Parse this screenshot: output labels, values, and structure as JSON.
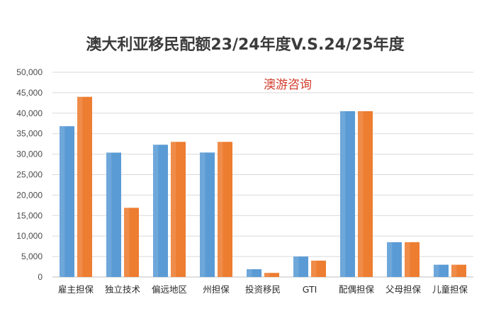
{
  "chart_data": {
    "type": "bar",
    "title": "澳大利亚移民配额23/24年度V.S.24/25年度",
    "watermark": "澳游咨询",
    "categories": [
      "雇主担保",
      "独立技术",
      "偏远地区",
      "州担保",
      "投资移民",
      "GTI",
      "配偶担保",
      "父母担保",
      "儿童担保"
    ],
    "series": [
      {
        "color": "#5b9bd5",
        "values": [
          36825,
          30375,
          32300,
          30400,
          1900,
          5000,
          40500,
          8500,
          3000
        ]
      },
      {
        "color": "#ed7d31",
        "values": [
          44000,
          16900,
          33000,
          33000,
          1000,
          4000,
          40500,
          8500,
          3000
        ]
      }
    ],
    "yticks": [
      "0",
      "5,000",
      "10,000",
      "15,000",
      "20,000",
      "25,000",
      "30,000",
      "35,000",
      "40,000",
      "45,000",
      "50,000"
    ],
    "ylim": [
      0,
      50000
    ],
    "grid": true,
    "legend": "none"
  }
}
